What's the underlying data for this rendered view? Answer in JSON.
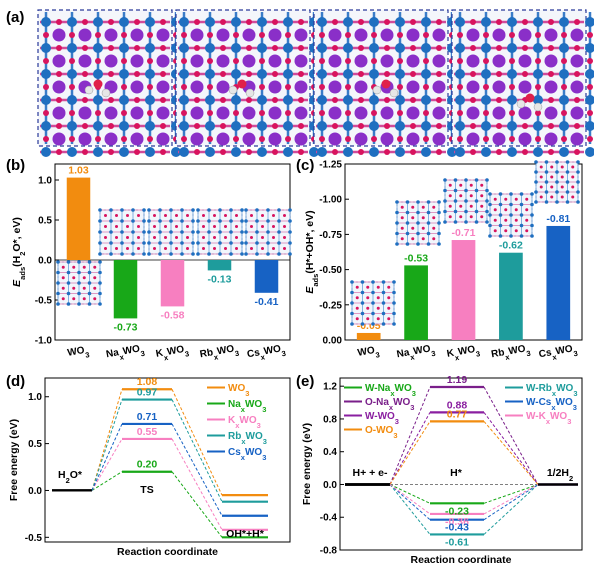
{
  "chart_data": [
    {
      "panel": "(a)",
      "type": "image",
      "note": ""
    },
    {
      "panel": "(b)",
      "type": "bar",
      "ylabel": "E_ads(H2O*, eV)",
      "ylabel_main": "E",
      "ylabel_sub": "ads",
      "ylabel_rest": "(H",
      "ylabel_sub2": "2",
      "ylabel_rest2": "O*, eV)",
      "ylim": [
        -1.0,
        1.2
      ],
      "yticks": [
        "1.0",
        "0.5",
        "0.0",
        "-0.5",
        "-1.0"
      ],
      "yticks_values": [
        1.0,
        0.5,
        0.0,
        -0.5,
        -1.0
      ],
      "categories": [
        "WO3",
        "NaxWO3",
        "KxWO3",
        "RbxWO3",
        "CsxWO3"
      ],
      "values": [
        1.03,
        -0.73,
        -0.58,
        -0.13,
        -0.41
      ],
      "value_labels": [
        "1.03",
        "-0.73",
        "-0.58",
        "-0.13",
        "-0.41"
      ],
      "colors": [
        "#f28c0f",
        "#18a818",
        "#f77fc0",
        "#1e9c9c",
        "#1762c4"
      ]
    },
    {
      "panel": "(c)",
      "type": "bar",
      "ylabel": "E_ads(H*+OH*, eV)",
      "ylabel_main": "E",
      "ylabel_sub": "ads",
      "ylabel_rest": "(H*+OH*, eV)",
      "ylim": [
        0.0,
        -1.25
      ],
      "yticks": [
        "-1.25",
        "-1.00",
        "-0.75",
        "-0.50",
        "-0.25",
        "0.00"
      ],
      "yticks_values": [
        -1.25,
        -1.0,
        -0.75,
        -0.5,
        -0.25,
        0.0
      ],
      "categories": [
        "WO3",
        "NaxWO3",
        "KxWO3",
        "RbxWO3",
        "CsxWO3"
      ],
      "values": [
        -0.05,
        -0.53,
        -0.71,
        -0.62,
        -0.81
      ],
      "value_labels": [
        "-0.05",
        "-0.53",
        "-0.71",
        "-0.62",
        "-0.81"
      ],
      "colors": [
        "#f28c0f",
        "#18a818",
        "#f77fc0",
        "#1e9c9c",
        "#1762c4"
      ]
    },
    {
      "panel": "(d)",
      "type": "line",
      "ylabel": "Free energy (eV)",
      "xlabel": "Reaction coordinate",
      "ylim": [
        -0.55,
        1.2
      ],
      "yticks": [
        "1.0",
        "0.5",
        "0.0",
        "-0.5"
      ],
      "yticks_values": [
        1.0,
        0.5,
        0.0,
        -0.5
      ],
      "state_labels": [
        "H2O*",
        "TS",
        "OH*+H*"
      ],
      "series": [
        {
          "name": "WO3",
          "values": [
            0.0,
            1.08,
            -0.05
          ],
          "color": "#f28c0f"
        },
        {
          "name": "NaxWO3",
          "values": [
            0.0,
            0.2,
            -0.5
          ],
          "color": "#18a818"
        },
        {
          "name": "KxWO3",
          "values": [
            0.0,
            0.55,
            -0.42
          ],
          "color": "#f77fc0"
        },
        {
          "name": "RbxWO3",
          "values": [
            0.0,
            0.97,
            -0.12
          ],
          "color": "#1e9c9c"
        },
        {
          "name": "CsxWO3",
          "values": [
            0.0,
            0.71,
            -0.27
          ],
          "color": "#1762c4"
        }
      ],
      "value_labels": [
        "1.08",
        "0.97",
        "0.71",
        "0.55",
        "0.20"
      ],
      "legend_position": "top-right"
    },
    {
      "panel": "(e)",
      "type": "line",
      "ylabel": "Free energy (eV)",
      "xlabel": "Reaction coordinate",
      "ylim": [
        -0.8,
        1.3
      ],
      "yticks": [
        "1.2",
        "0.8",
        "0.4",
        "0.0",
        "-0.4",
        "-0.8"
      ],
      "yticks_values": [
        1.2,
        0.8,
        0.4,
        0.0,
        -0.4,
        -0.8
      ],
      "state_labels": [
        "H+ + e-",
        "H*",
        "1/2H2"
      ],
      "series": [
        {
          "name": "W-NaxWO3",
          "values": [
            0.0,
            -0.23,
            0.0
          ],
          "color": "#18a818"
        },
        {
          "name": "O-NaxWO3",
          "values": [
            0.0,
            1.19,
            0.0
          ],
          "color": "#7a1f8a"
        },
        {
          "name": "W-WO3",
          "values": [
            0.0,
            0.88,
            0.0
          ],
          "color": "#8a1fa0"
        },
        {
          "name": "O-WO3",
          "values": [
            0.0,
            0.77,
            0.0
          ],
          "color": "#f28c0f"
        },
        {
          "name": "W-RbxWO3",
          "values": [
            0.0,
            -0.61,
            0.0
          ],
          "color": "#1e9c9c"
        },
        {
          "name": "W-CsxWO3",
          "values": [
            0.0,
            -0.43,
            0.0
          ],
          "color": "#1762c4"
        },
        {
          "name": "W-KxWO3",
          "values": [
            0.0,
            -0.36,
            0.0
          ],
          "color": "#f77fc0"
        }
      ],
      "value_labels": [
        "1.19",
        "0.88",
        "0.77",
        "-0.23",
        "-0.36",
        "-0.43",
        "-0.61"
      ],
      "legend_position": "top"
    }
  ],
  "panel_labels": [
    "(a)",
    "(b)",
    "(c)",
    "(d)",
    "(e)"
  ]
}
